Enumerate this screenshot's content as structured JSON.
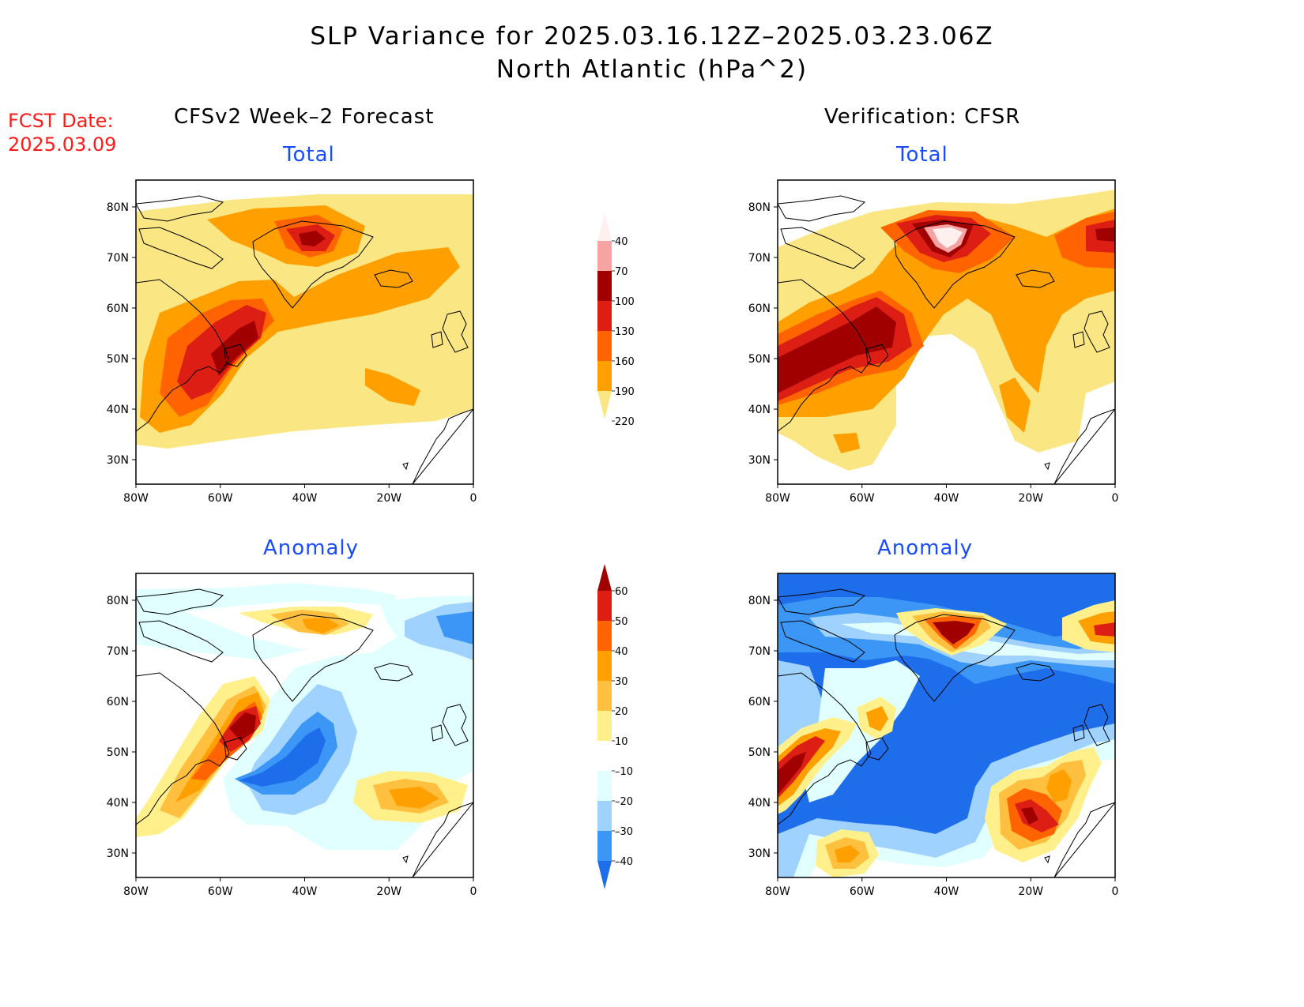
{
  "header": {
    "title_line1": "SLP Variance for 2025.03.16.12Z–2025.03.23.06Z",
    "title_line2": "North Atlantic (hPa^2)"
  },
  "fcst": {
    "label": "FCST Date:",
    "date": "2025.03.09"
  },
  "columns": {
    "left": "CFSv2 Week–2 Forecast",
    "right": "Verification: CFSR"
  },
  "panels": {
    "fc_total": "Total",
    "vf_total": "Total",
    "fc_anom": "Anomaly",
    "vf_anom": "Anomaly"
  },
  "axes": {
    "lon_labels": [
      "80W",
      "60W",
      "40W",
      "20W",
      "0"
    ],
    "lat_labels": [
      "80N",
      "70N",
      "60N",
      "50N",
      "40N",
      "30N"
    ]
  },
  "colorbars": {
    "total": {
      "levels": [
        "40",
        "70",
        "100",
        "130",
        "160",
        "190",
        "220"
      ],
      "colors": [
        "#fff0f0",
        "#f5a3a3",
        "#a00000",
        "#dc1e14",
        "#ff6400",
        "#ffa000",
        "#fae682"
      ]
    },
    "anomaly": {
      "levels": [
        "60",
        "50",
        "40",
        "30",
        "20",
        "10",
        "–10",
        "–20",
        "–30",
        "–40"
      ],
      "colors": [
        "#a00000",
        "#dc1e14",
        "#ff6400",
        "#ffa000",
        "#ffc040",
        "#fff08c",
        "#ffffff",
        "#e1ffff",
        "#a0d2ff",
        "#3c96f5",
        "#1e6eeb"
      ]
    }
  },
  "colors": {
    "title_red": "#ff1a1a",
    "panel_blue": "#1a4cff",
    "c40": "#fae682",
    "c70": "#ffa000",
    "c100": "#ff6400",
    "c130": "#dc1e14",
    "c160": "#a00000",
    "c190": "#f5a3a3",
    "c220": "#fff0f0",
    "n10": "#e1ffff",
    "n20": "#a0d2ff",
    "n30": "#3c96f5",
    "n40": "#1e6eeb"
  }
}
